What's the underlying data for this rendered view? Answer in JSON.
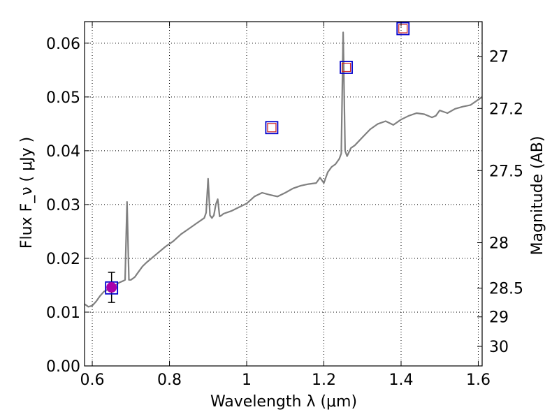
{
  "chart_data": {
    "type": "line",
    "xlabel": "Wavelength  λ (μm)",
    "ylabel": "Flux  F_ν  ( μJy )",
    "y2label": "Magnitude (AB)",
    "xlim": [
      0.58,
      1.61
    ],
    "ylim": [
      0.0,
      0.064
    ],
    "grid": true,
    "xticks": [
      0.6,
      0.8,
      1.0,
      1.2,
      1.4,
      1.6
    ],
    "xtick_labels": [
      "0.6",
      "0.8",
      "1",
      "1.2",
      "1.4",
      "1.6"
    ],
    "yticks": [
      0.0,
      0.01,
      0.02,
      0.03,
      0.04,
      0.05,
      0.06
    ],
    "ytick_labels": [
      "0.00",
      "0.01",
      "0.02",
      "0.03",
      "0.04",
      "0.05",
      "0.06"
    ],
    "y2ticks": [
      27,
      27.2,
      27.5,
      28,
      28.5,
      29,
      30
    ],
    "y2tick_labels": [
      "27",
      "27.2",
      "27.5",
      "28",
      "28.5",
      "29",
      "30"
    ],
    "colors": {
      "spectrum": "#808080",
      "box": "#0000cc",
      "model_box": "#cc2222",
      "observed_point": "#aa00aa"
    },
    "series": [
      {
        "kind": "spectrum",
        "x": [
          0.58,
          0.59,
          0.6,
          0.61,
          0.62,
          0.63,
          0.64,
          0.65,
          0.66,
          0.67,
          0.68,
          0.685,
          0.69,
          0.695,
          0.7,
          0.71,
          0.72,
          0.73,
          0.74,
          0.75,
          0.77,
          0.79,
          0.81,
          0.83,
          0.85,
          0.87,
          0.89,
          0.895,
          0.9,
          0.905,
          0.91,
          0.915,
          0.92,
          0.925,
          0.93,
          0.935,
          0.94,
          0.96,
          0.98,
          1.0,
          1.02,
          1.04,
          1.06,
          1.08,
          1.1,
          1.12,
          1.14,
          1.16,
          1.18,
          1.19,
          1.2,
          1.21,
          1.22,
          1.23,
          1.24,
          1.245,
          1.25,
          1.255,
          1.26,
          1.27,
          1.28,
          1.3,
          1.32,
          1.34,
          1.36,
          1.38,
          1.4,
          1.42,
          1.44,
          1.46,
          1.48,
          1.49,
          1.5,
          1.52,
          1.54,
          1.56,
          1.58,
          1.6,
          1.61
        ],
        "y": [
          0.0115,
          0.011,
          0.0112,
          0.012,
          0.013,
          0.0138,
          0.0142,
          0.0148,
          0.015,
          0.0155,
          0.0158,
          0.016,
          0.0305,
          0.016,
          0.016,
          0.0165,
          0.0175,
          0.0185,
          0.0192,
          0.0198,
          0.021,
          0.0222,
          0.0232,
          0.0245,
          0.0255,
          0.0265,
          0.0275,
          0.0285,
          0.0348,
          0.028,
          0.0275,
          0.028,
          0.03,
          0.031,
          0.0278,
          0.028,
          0.0283,
          0.0288,
          0.0295,
          0.0302,
          0.0315,
          0.0322,
          0.0318,
          0.0315,
          0.0322,
          0.033,
          0.0335,
          0.0338,
          0.034,
          0.035,
          0.034,
          0.036,
          0.037,
          0.0375,
          0.0385,
          0.0395,
          0.062,
          0.04,
          0.039,
          0.0405,
          0.041,
          0.0425,
          0.044,
          0.045,
          0.0455,
          0.0448,
          0.0458,
          0.0465,
          0.047,
          0.0468,
          0.0462,
          0.0465,
          0.0475,
          0.047,
          0.0478,
          0.0482,
          0.0485,
          0.0495,
          0.05
        ]
      },
      {
        "kind": "model-boxes",
        "x": [
          0.65,
          1.065,
          1.258,
          1.405
        ],
        "y": [
          0.0145,
          0.0443,
          0.0555,
          0.0627
        ]
      },
      {
        "kind": "observed-point",
        "x": [
          0.65
        ],
        "y": [
          0.0146
        ],
        "err": [
          0.0028
        ]
      }
    ]
  }
}
